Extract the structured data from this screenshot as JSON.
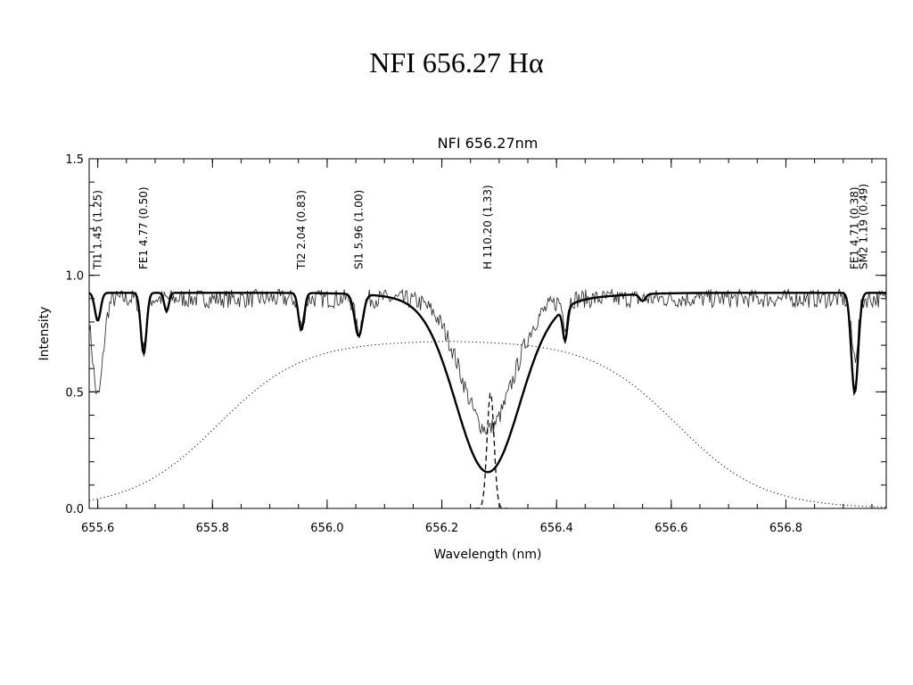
{
  "page_title": "NFI   656.27  Hα",
  "chart_data": {
    "type": "line",
    "title": "NFI 656.27nm",
    "xlabel": "Wavelength (nm)",
    "ylabel": "Intensity",
    "xlim": [
      655.585,
      656.975
    ],
    "ylim": [
      0.0,
      1.5
    ],
    "x_ticks": [
      {
        "v": 655.6,
        "t": "655.6"
      },
      {
        "v": 655.8,
        "t": "655.8"
      },
      {
        "v": 656.0,
        "t": "656.0"
      },
      {
        "v": 656.2,
        "t": "656.2"
      },
      {
        "v": 656.4,
        "t": "656.4"
      },
      {
        "v": 656.6,
        "t": "656.6"
      },
      {
        "v": 656.8,
        "t": "656.8"
      }
    ],
    "y_ticks": [
      {
        "v": 0.0,
        "t": "0.0"
      },
      {
        "v": 0.5,
        "t": "0.5"
      },
      {
        "v": 1.0,
        "t": "1.0"
      },
      {
        "v": 1.5,
        "t": "1.5"
      }
    ],
    "line_labels": [
      {
        "x": 655.6,
        "text": "TI1 1.45 (1.25)"
      },
      {
        "x": 655.68,
        "text": "FE1 4.77 (0.50)"
      },
      {
        "x": 655.955,
        "text": "TI2 2.04 (0.83)"
      },
      {
        "x": 656.055,
        "text": "SI1 5.96 (1.00)"
      },
      {
        "x": 656.28,
        "text": "H 110.20 (1.33)"
      },
      {
        "x": 656.92,
        "text": "FE1 4.71 (0.38)"
      },
      {
        "x": 656.935,
        "text": "SM2 1.19 (0.49)"
      }
    ],
    "series": [
      {
        "style": "thin",
        "baseline": 0.9,
        "noise": 0.04,
        "absorptions": [
          {
            "c": 655.6,
            "d": 0.42,
            "w": 0.009
          },
          {
            "c": 655.68,
            "d": 0.22,
            "w": 0.005
          },
          {
            "c": 655.955,
            "d": 0.12,
            "w": 0.005
          },
          {
            "c": 656.055,
            "d": 0.14,
            "w": 0.006
          },
          {
            "c": 656.28,
            "d": 0.56,
            "w": 0.045
          },
          {
            "c": 656.415,
            "d": 0.1,
            "w": 0.004
          },
          {
            "c": 656.92,
            "d": 0.25,
            "w": 0.006
          }
        ]
      },
      {
        "style": "thick",
        "baseline": 0.925,
        "noise": 0.0,
        "absorptions": [
          {
            "c": 655.6,
            "d": 0.12,
            "w": 0.005
          },
          {
            "c": 655.68,
            "d": 0.26,
            "w": 0.005
          },
          {
            "c": 655.72,
            "d": 0.08,
            "w": 0.004
          },
          {
            "c": 655.955,
            "d": 0.16,
            "w": 0.005
          },
          {
            "c": 656.055,
            "d": 0.18,
            "w": 0.007
          },
          {
            "c": 656.28,
            "d": 0.72,
            "w": 0.055
          },
          {
            "c": 656.3,
            "d": 0.05,
            "w": 0.12
          },
          {
            "c": 656.415,
            "d": 0.14,
            "w": 0.004
          },
          {
            "c": 656.55,
            "d": 0.03,
            "w": 0.005
          },
          {
            "c": 656.92,
            "d": 0.43,
            "w": 0.006
          }
        ]
      },
      {
        "style": "dotted",
        "filter": {
          "center": 656.21,
          "peak": 0.72,
          "halfwidth": 0.4,
          "edge_softness": 0.075
        }
      },
      {
        "style": "dashed",
        "gaussian": {
          "center": 656.285,
          "peak": 0.5,
          "sigma": 0.006
        }
      }
    ]
  }
}
